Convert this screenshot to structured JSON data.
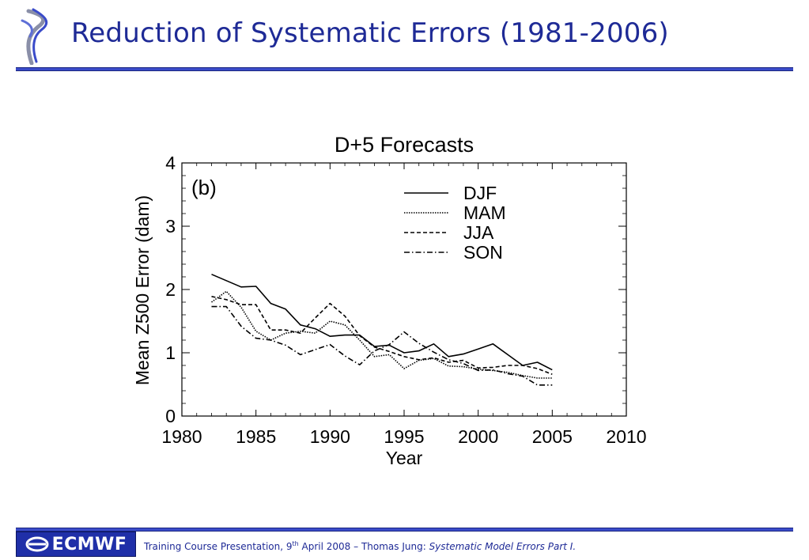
{
  "header": {
    "title": "Reduction of Systematic Errors (1981-2006)"
  },
  "footer": {
    "brand": "ECMWF",
    "text_prefix": "Training Course Presentation, 9",
    "text_sup": "th",
    "text_middle": " April 2008 – Thomas Jung: ",
    "text_italic": "Systematic Model Errors Part I."
  },
  "colors": {
    "title": "#1e2a96",
    "rule": "#3a4bc9",
    "footer_box": "#1f2fa8"
  },
  "chart_data": {
    "type": "line",
    "title": "D+5 Forecasts",
    "panel_label": "(b)",
    "xlabel": "Year",
    "ylabel": "Mean Z500 Error (dam)",
    "xlim": [
      1980,
      2010
    ],
    "ylim": [
      0,
      4
    ],
    "xticks": [
      1980,
      1985,
      1990,
      1995,
      2000,
      2005,
      2010
    ],
    "yticks": [
      0,
      1,
      2,
      3,
      4
    ],
    "grid": false,
    "legend_position": "top-right",
    "series": [
      {
        "name": "DJF",
        "dash": "solid",
        "x": [
          1982,
          1983,
          1984,
          1985,
          1986,
          1987,
          1988,
          1989,
          1990,
          1991,
          1992,
          1993,
          1994,
          1995,
          1996,
          1997,
          1998,
          1999,
          2000,
          2001,
          2002,
          2003,
          2004,
          2005
        ],
        "y": [
          2.24,
          2.14,
          2.04,
          2.05,
          1.78,
          1.69,
          1.44,
          1.38,
          1.26,
          1.28,
          1.28,
          1.1,
          1.12,
          1.0,
          1.03,
          1.14,
          0.94,
          0.98,
          1.06,
          1.14,
          0.97,
          0.8,
          0.85,
          0.73
        ]
      },
      {
        "name": "MAM",
        "dash": "dotted",
        "x": [
          1982,
          1983,
          1984,
          1985,
          1986,
          1987,
          1988,
          1989,
          1990,
          1991,
          1992,
          1993,
          1994,
          1995,
          1996,
          1997,
          1998,
          1999,
          2000,
          2001,
          2002,
          2003,
          2004,
          2005
        ],
        "y": [
          1.8,
          1.97,
          1.72,
          1.34,
          1.2,
          1.31,
          1.34,
          1.31,
          1.5,
          1.44,
          1.2,
          0.94,
          0.97,
          0.75,
          0.88,
          0.91,
          0.79,
          0.78,
          0.74,
          0.72,
          0.69,
          0.64,
          0.6,
          0.6
        ]
      },
      {
        "name": "JJA",
        "dash": "dashed",
        "x": [
          1982,
          1983,
          1984,
          1985,
          1986,
          1987,
          1988,
          1989,
          1990,
          1991,
          1992,
          1993,
          1994,
          1995,
          1996,
          1997,
          1998,
          1999,
          2000,
          2001,
          2002,
          2003,
          2004,
          2005
        ],
        "y": [
          1.89,
          1.84,
          1.76,
          1.76,
          1.36,
          1.36,
          1.31,
          1.55,
          1.78,
          1.58,
          1.27,
          1.09,
          1.02,
          0.94,
          0.89,
          0.92,
          0.85,
          0.88,
          0.76,
          0.77,
          0.8,
          0.8,
          0.75,
          0.66
        ]
      },
      {
        "name": "SON",
        "dash": "dashdot",
        "x": [
          1982,
          1983,
          1984,
          1985,
          1986,
          1987,
          1988,
          1989,
          1990,
          1991,
          1992,
          1993,
          1994,
          1995,
          1996,
          1997,
          1998,
          1999,
          2000,
          2001,
          2002,
          2003,
          2004,
          2005
        ],
        "y": [
          1.73,
          1.73,
          1.42,
          1.23,
          1.2,
          1.12,
          0.97,
          1.05,
          1.13,
          0.95,
          0.81,
          1.03,
          1.13,
          1.33,
          1.15,
          1.01,
          0.89,
          0.83,
          0.72,
          0.73,
          0.67,
          0.63,
          0.49,
          0.49
        ]
      }
    ]
  }
}
